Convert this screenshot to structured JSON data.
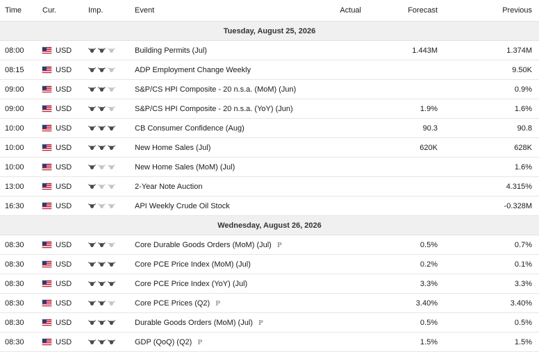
{
  "colors": {
    "bull_on": "#4a4a4a",
    "bull_off": "#c4c4c4",
    "date_bg": "#f0f0f0"
  },
  "headers": {
    "time": "Time",
    "currency": "Cur.",
    "importance": "Imp.",
    "event": "Event",
    "actual": "Actual",
    "forecast": "Forecast",
    "previous": "Previous"
  },
  "days": [
    {
      "date": "Tuesday, August 25, 2026",
      "events": [
        {
          "time": "08:00",
          "currency": "USD",
          "importance": 2,
          "event": "Building Permits (Jul)",
          "preliminary": false,
          "actual": "",
          "forecast": "1.443M",
          "previous": "1.374M"
        },
        {
          "time": "08:15",
          "currency": "USD",
          "importance": 2,
          "event": "ADP Employment Change Weekly",
          "preliminary": false,
          "actual": "",
          "forecast": "",
          "previous": "9.50K"
        },
        {
          "time": "09:00",
          "currency": "USD",
          "importance": 2,
          "event": "S&P/CS HPI Composite - 20 n.s.a. (MoM) (Jun)",
          "preliminary": false,
          "actual": "",
          "forecast": "",
          "previous": "0.9%"
        },
        {
          "time": "09:00",
          "currency": "USD",
          "importance": 2,
          "event": "S&P/CS HPI Composite - 20 n.s.a. (YoY) (Jun)",
          "preliminary": false,
          "actual": "",
          "forecast": "1.9%",
          "previous": "1.6%"
        },
        {
          "time": "10:00",
          "currency": "USD",
          "importance": 3,
          "event": "CB Consumer Confidence (Aug)",
          "preliminary": false,
          "actual": "",
          "forecast": "90.3",
          "previous": "90.8"
        },
        {
          "time": "10:00",
          "currency": "USD",
          "importance": 3,
          "event": "New Home Sales (Jul)",
          "preliminary": false,
          "actual": "",
          "forecast": "620K",
          "previous": "628K"
        },
        {
          "time": "10:00",
          "currency": "USD",
          "importance": 1,
          "event": "New Home Sales (MoM) (Jul)",
          "preliminary": false,
          "actual": "",
          "forecast": "",
          "previous": "1.6%"
        },
        {
          "time": "13:00",
          "currency": "USD",
          "importance": 1,
          "event": "2-Year Note Auction",
          "preliminary": false,
          "actual": "",
          "forecast": "",
          "previous": "4.315%"
        },
        {
          "time": "16:30",
          "currency": "USD",
          "importance": 1,
          "event": "API Weekly Crude Oil Stock",
          "preliminary": false,
          "actual": "",
          "forecast": "",
          "previous": "-0.328M"
        }
      ]
    },
    {
      "date": "Wednesday, August 26, 2026",
      "events": [
        {
          "time": "08:30",
          "currency": "USD",
          "importance": 2,
          "event": "Core Durable Goods Orders (MoM) (Jul)",
          "preliminary": true,
          "actual": "",
          "forecast": "0.5%",
          "previous": "0.7%"
        },
        {
          "time": "08:30",
          "currency": "USD",
          "importance": 3,
          "event": "Core PCE Price Index (MoM) (Jul)",
          "preliminary": false,
          "actual": "",
          "forecast": "0.2%",
          "previous": "0.1%"
        },
        {
          "time": "08:30",
          "currency": "USD",
          "importance": 3,
          "event": "Core PCE Price Index (YoY) (Jul)",
          "preliminary": false,
          "actual": "",
          "forecast": "3.3%",
          "previous": "3.3%"
        },
        {
          "time": "08:30",
          "currency": "USD",
          "importance": 2,
          "event": "Core PCE Prices (Q2)",
          "preliminary": true,
          "actual": "",
          "forecast": "3.40%",
          "previous": "3.40%"
        },
        {
          "time": "08:30",
          "currency": "USD",
          "importance": 3,
          "event": "Durable Goods Orders (MoM) (Jul)",
          "preliminary": true,
          "actual": "",
          "forecast": "0.5%",
          "previous": "0.5%"
        },
        {
          "time": "08:30",
          "currency": "USD",
          "importance": 3,
          "event": "GDP (QoQ) (Q2)",
          "preliminary": true,
          "actual": "",
          "forecast": "1.5%",
          "previous": "1.5%"
        }
      ]
    }
  ],
  "preliminary_marker": "P"
}
